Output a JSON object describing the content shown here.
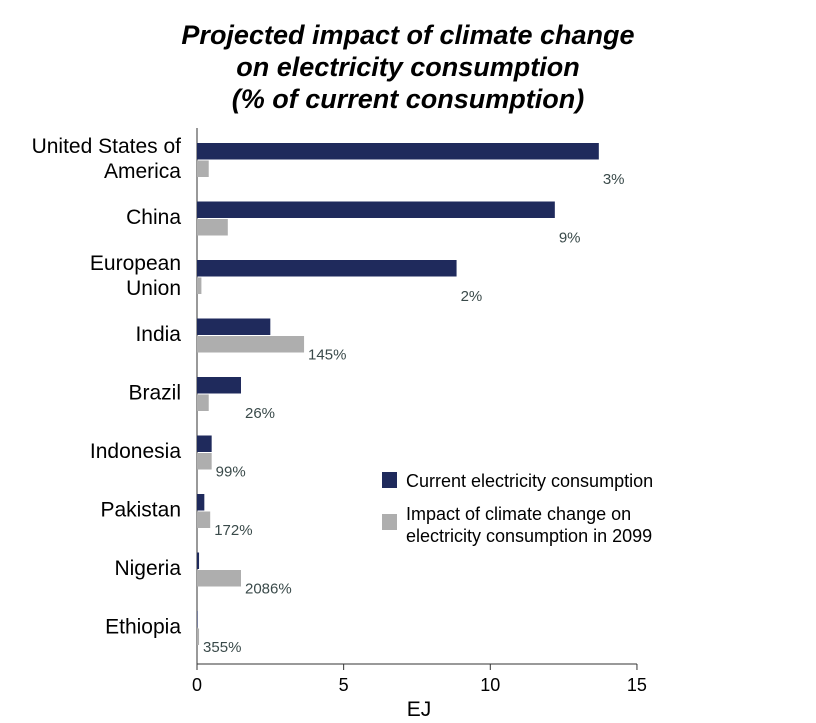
{
  "chart_data": {
    "type": "bar",
    "orientation": "horizontal",
    "title": "Projected impact of climate change on electricity consumption (% of current consumption)",
    "title_lines": [
      "Projected impact of climate change",
      "on electricity consumption",
      "(% of current consumption)"
    ],
    "xlabel": "EJ",
    "ylabel": "",
    "xlim": [
      0,
      15
    ],
    "xticks": [
      0,
      5,
      10,
      15
    ],
    "grid": false,
    "legend_position": "right",
    "categories": [
      "United States of America",
      "China",
      "European Union",
      "India",
      "Brazil",
      "Indonesia",
      "Pakistan",
      "Nigeria",
      "Ethiopia"
    ],
    "category_lines": [
      [
        "United States of",
        "America"
      ],
      [
        "China"
      ],
      [
        "European",
        "Union"
      ],
      [
        "India"
      ],
      [
        "Brazil"
      ],
      [
        "Indonesia"
      ],
      [
        "Pakistan"
      ],
      [
        "Nigeria"
      ],
      [
        "Ethiopia"
      ]
    ],
    "series": [
      {
        "name": "Current electricity consumption",
        "color": "#1f2a5c",
        "values": [
          13.7,
          12.2,
          8.85,
          2.5,
          1.5,
          0.5,
          0.25,
          0.07,
          0.02
        ]
      },
      {
        "name": "Impact of climate change on electricity consumption in 2099",
        "color": "#aeaeae",
        "values": [
          0.4,
          1.05,
          0.15,
          3.65,
          0.4,
          0.5,
          0.45,
          1.5,
          0.07
        ]
      }
    ],
    "data_labels": [
      "3%",
      "9%",
      "2%",
      "145%",
      "26%",
      "99%",
      "172%",
      "2086%",
      "355%"
    ]
  }
}
